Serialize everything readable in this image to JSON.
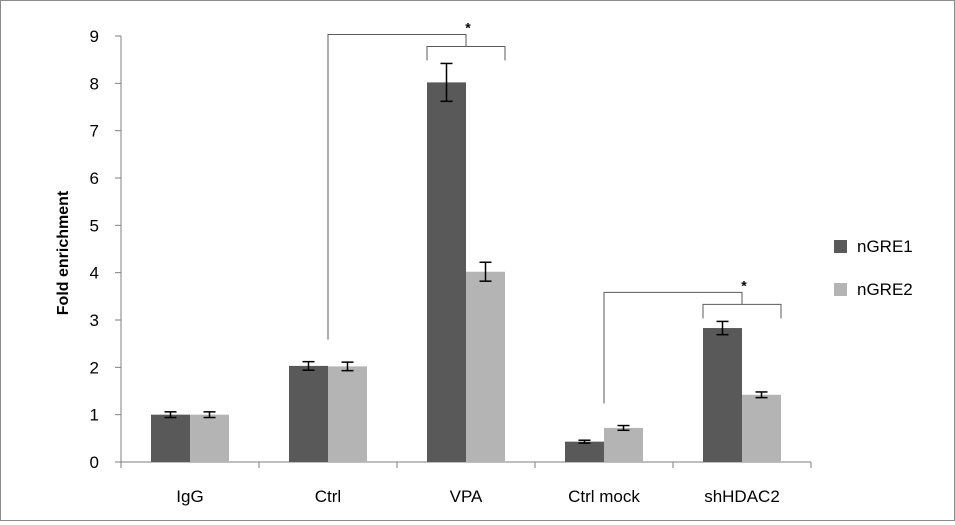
{
  "chart_data": {
    "type": "bar",
    "title": "",
    "xlabel": "",
    "ylabel": "Fold enrichment",
    "ylim": [
      0,
      9
    ],
    "yticks": [
      0,
      1,
      2,
      3,
      4,
      5,
      6,
      7,
      8,
      9
    ],
    "grid": false,
    "legend": "right",
    "categories": [
      "IgG",
      "Ctrl",
      "VPA",
      "Ctrl mock",
      "shHDAC2"
    ],
    "series": [
      {
        "name": "nGRE1",
        "color": "#595959",
        "values": [
          1.0,
          2.03,
          8.02,
          0.43,
          2.83
        ],
        "errors": [
          0.06,
          0.09,
          0.4,
          0.03,
          0.14
        ]
      },
      {
        "name": "nGRE2",
        "color": "#b4b4b4",
        "values": [
          1.0,
          2.02,
          4.02,
          0.72,
          1.42
        ],
        "errors": [
          0.06,
          0.09,
          0.2,
          0.05,
          0.06
        ]
      }
    ],
    "annotations": [
      {
        "label": "*",
        "from": "Ctrl",
        "to": "VPA"
      },
      {
        "label": "*",
        "from": "Ctrl mock",
        "to": "shHDAC2"
      }
    ]
  }
}
